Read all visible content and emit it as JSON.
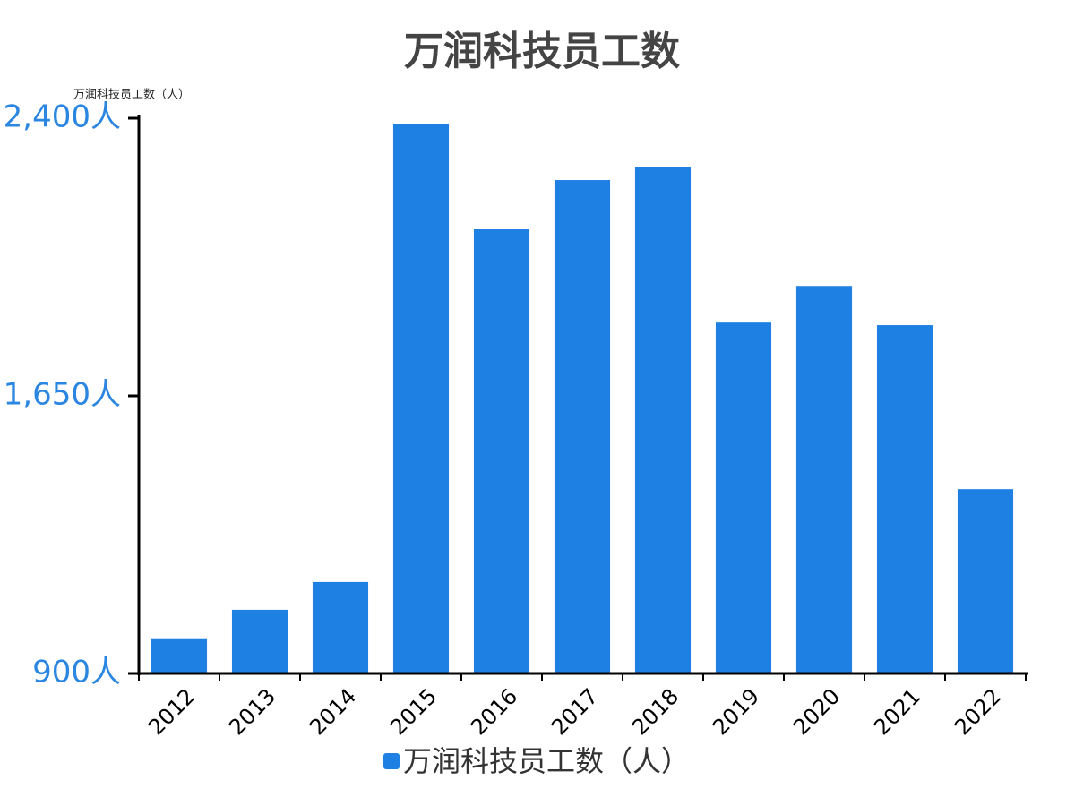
{
  "chart_data": {
    "type": "bar",
    "title": "万润科技员工数",
    "y_axis_label": "万润科技员工数（人）",
    "categories": [
      "2012",
      "2013",
      "2014",
      "2015",
      "2016",
      "2017",
      "2018",
      "2019",
      "2020",
      "2021",
      "2022"
    ],
    "series": [
      {
        "name": "万润科技员工数（人）",
        "color": "#1f80e4",
        "values": [
          995,
          1072,
          1147,
          2385,
          2100,
          2233,
          2267,
          1848,
          1947,
          1841,
          1398
        ]
      }
    ],
    "ylim": [
      900,
      2400
    ],
    "yticks": [
      {
        "value": 900,
        "label": "900人"
      },
      {
        "value": 1650,
        "label": "1,650人"
      },
      {
        "value": 2400,
        "label": "2,400人"
      }
    ],
    "legend": "bottom"
  }
}
